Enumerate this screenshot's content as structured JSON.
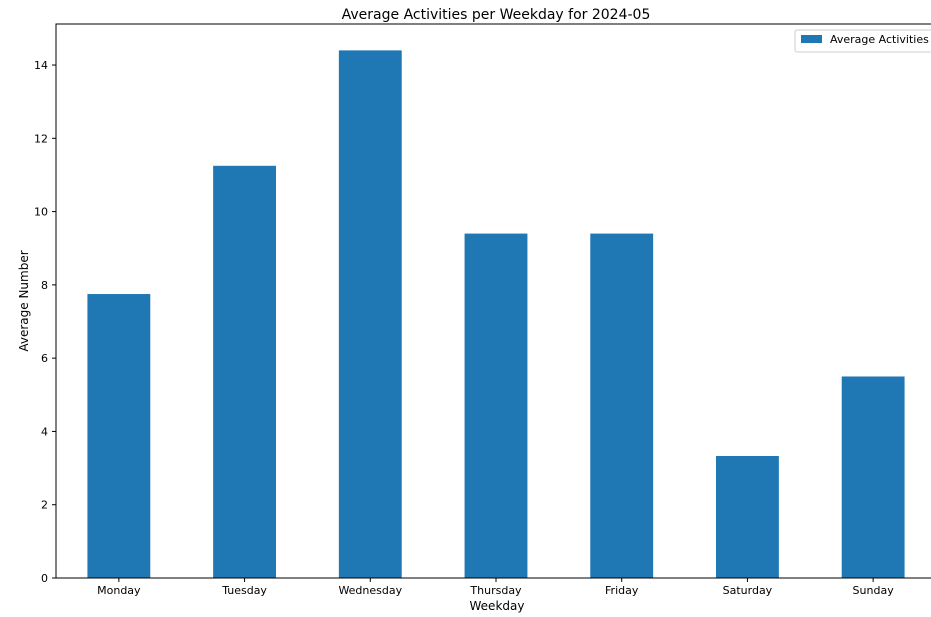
{
  "chart_data": {
    "type": "bar",
    "title": "Average Activities per Weekday for 2024-05",
    "xlabel": "Weekday",
    "ylabel": "Average Number",
    "categories": [
      "Monday",
      "Tuesday",
      "Wednesday",
      "Thursday",
      "Friday",
      "Saturday",
      "Sunday"
    ],
    "series": [
      {
        "name": "Average Activities",
        "values": [
          7.75,
          11.25,
          14.4,
          9.4,
          9.4,
          3.33,
          5.5
        ],
        "color": "#1f77b4"
      }
    ],
    "ylim": [
      0,
      15.12
    ],
    "yticks": [
      0,
      2,
      4,
      6,
      8,
      10,
      12,
      14
    ],
    "grid": false,
    "legend_position": "top-right"
  }
}
